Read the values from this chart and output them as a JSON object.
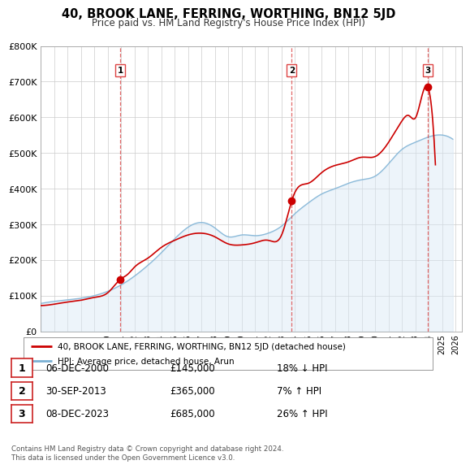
{
  "title": "40, BROOK LANE, FERRING, WORTHING, BN12 5JD",
  "subtitle": "Price paid vs. HM Land Registry's House Price Index (HPI)",
  "legend_label_red": "40, BROOK LANE, FERRING, WORTHING, BN12 5JD (detached house)",
  "legend_label_blue": "HPI: Average price, detached house, Arun",
  "footer_line1": "Contains HM Land Registry data © Crown copyright and database right 2024.",
  "footer_line2": "This data is licensed under the Open Government Licence v3.0.",
  "sale_points": [
    {
      "label": "1",
      "date_num": 2000.93,
      "price": 145000,
      "date_str": "06-DEC-2000",
      "price_str": "£145,000",
      "change": "18% ↓ HPI"
    },
    {
      "label": "2",
      "date_num": 2013.75,
      "price": 365000,
      "date_str": "30-SEP-2013",
      "price_str": "£365,000",
      "change": "7% ↑ HPI"
    },
    {
      "label": "3",
      "date_num": 2023.93,
      "price": 685000,
      "date_str": "08-DEC-2023",
      "price_str": "£685,000",
      "change": "26% ↑ HPI"
    }
  ],
  "vline_color": "#dd4444",
  "red_line_color": "#cc0000",
  "blue_line_color": "#7ab0d4",
  "blue_fill_color": "#d8e8f5",
  "plot_bg_color": "#ffffff",
  "grid_color": "#cccccc",
  "ylim": [
    0,
    800000
  ],
  "xlim_start": 1995.0,
  "xlim_end": 2026.5,
  "xtick_years": [
    1995,
    1996,
    1997,
    1998,
    1999,
    2000,
    2001,
    2002,
    2003,
    2004,
    2005,
    2006,
    2007,
    2008,
    2009,
    2010,
    2011,
    2012,
    2013,
    2014,
    2015,
    2016,
    2017,
    2018,
    2019,
    2020,
    2021,
    2022,
    2023,
    2024,
    2025,
    2026
  ]
}
